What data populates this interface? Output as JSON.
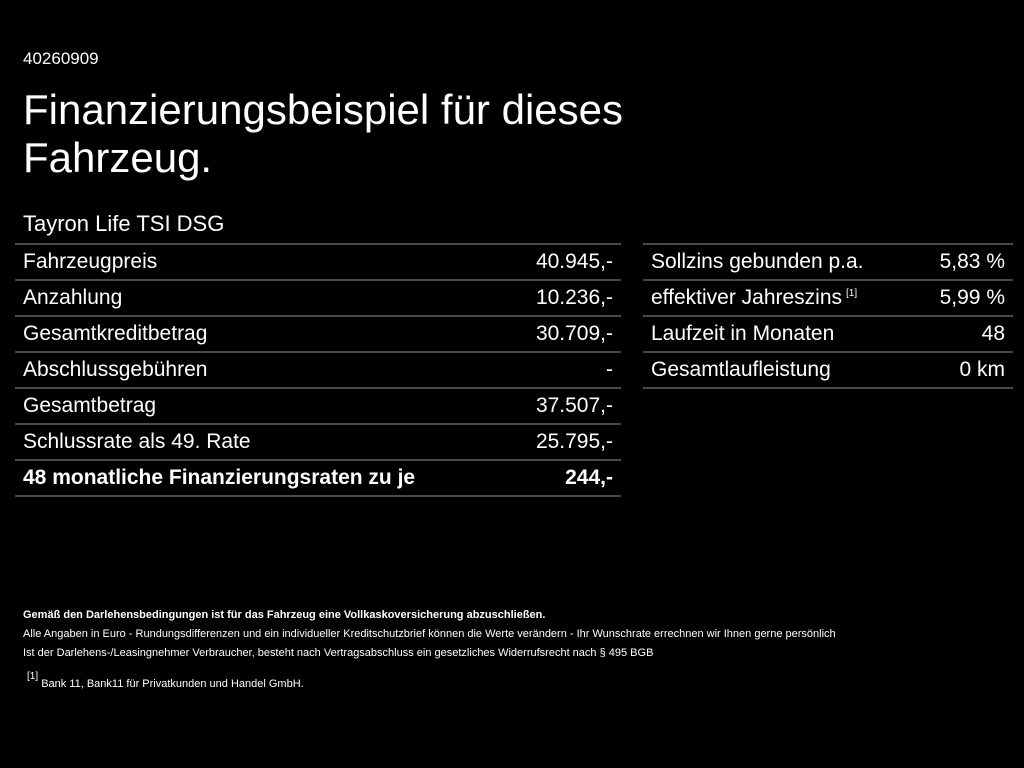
{
  "code": "40260909",
  "title": "Finanzierungsbeispiel für dieses Fahrzeug.",
  "model": "Tayron Life TSI DSG",
  "left_rows": [
    {
      "label": "Fahrzeugpreis",
      "value": "40.945,-"
    },
    {
      "label": "Anzahlung",
      "value": "10.236,-"
    },
    {
      "label": "Gesamtkreditbetrag",
      "value": "30.709,-"
    },
    {
      "label": "Abschlussgebühren",
      "value": "-"
    },
    {
      "label": "Gesamtbetrag",
      "value": "37.507,-"
    },
    {
      "label": "Schlussrate als 49. Rate",
      "value": "25.795,-"
    },
    {
      "label": "48 monatliche Finanzierungsraten zu je",
      "value": "244,-"
    }
  ],
  "right_rows": [
    {
      "label": "Sollzins gebunden p.a.",
      "value": "5,83 %"
    },
    {
      "label": "effektiver Jahreszins",
      "sup": "[1]",
      "value": "5,99 %"
    },
    {
      "label": "Laufzeit in Monaten",
      "value": "48"
    },
    {
      "label": "Gesamtlaufleistung",
      "value": "0 km"
    }
  ],
  "notes": {
    "bold": "Gemäß den Darlehensbedingungen ist für das Fahrzeug eine Vollkaskoversicherung abzuschließen.",
    "line1": "Alle Angaben in Euro - Rundungsdifferenzen und ein individueller Kreditschutzbrief können die Werte verändern - Ihr Wunschrate errechnen wir Ihnen gerne persönlich",
    "line2": "Ist der Darlehens-/Leasingnehmer Verbraucher, besteht nach Vertragsabschluss ein gesetzliches Widerrufsrecht nach § 495 BGB",
    "footnote_marker": "[1]",
    "footnote": "Bank 11, Bank11 für Privatkunden und Handel GmbH."
  }
}
